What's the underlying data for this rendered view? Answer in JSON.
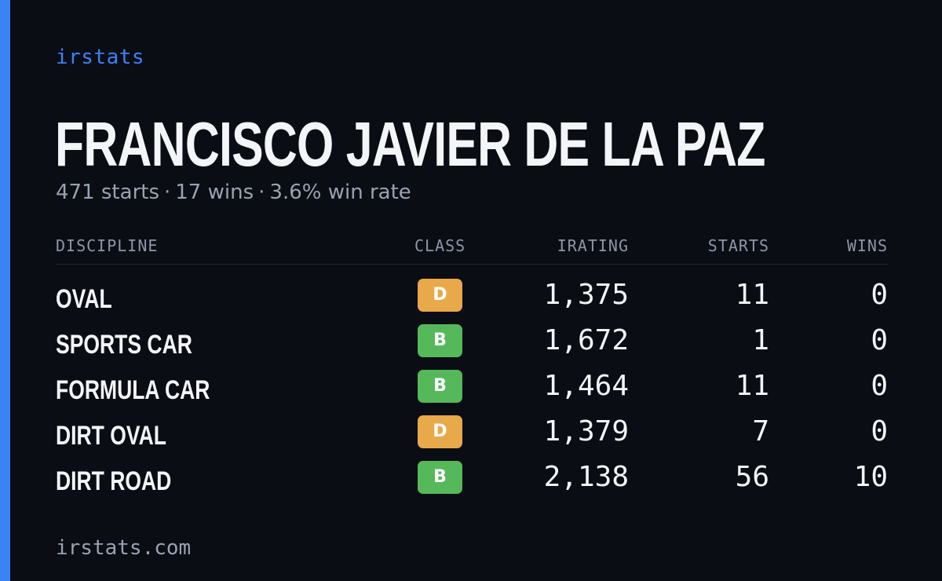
{
  "brand": {
    "name": "irstats",
    "accent_color": "#3b82f6"
  },
  "driver": {
    "name": "FRANCISCO JAVIER DE LA PAZ"
  },
  "summary": {
    "starts_text": "471 starts",
    "wins_text": "17 wins",
    "win_rate_text": "3.6% win rate",
    "separator": "·"
  },
  "table": {
    "headers": {
      "discipline": "DISCIPLINE",
      "class": "CLASS",
      "irating": "IRATING",
      "starts": "STARTS",
      "wins": "WINS"
    },
    "rows": [
      {
        "discipline": "OVAL",
        "class": "D",
        "irating": "1,375",
        "starts": "11",
        "wins": "0"
      },
      {
        "discipline": "SPORTS CAR",
        "class": "B",
        "irating": "1,672",
        "starts": "1",
        "wins": "0"
      },
      {
        "discipline": "FORMULA CAR",
        "class": "B",
        "irating": "1,464",
        "starts": "11",
        "wins": "0"
      },
      {
        "discipline": "DIRT OVAL",
        "class": "D",
        "irating": "1,379",
        "starts": "7",
        "wins": "0"
      },
      {
        "discipline": "DIRT ROAD",
        "class": "B",
        "irating": "2,138",
        "starts": "56",
        "wins": "10"
      }
    ]
  },
  "class_colors": {
    "B": "#55b85a",
    "D": "#e8a94a"
  },
  "footer": {
    "url": "irstats.com"
  }
}
